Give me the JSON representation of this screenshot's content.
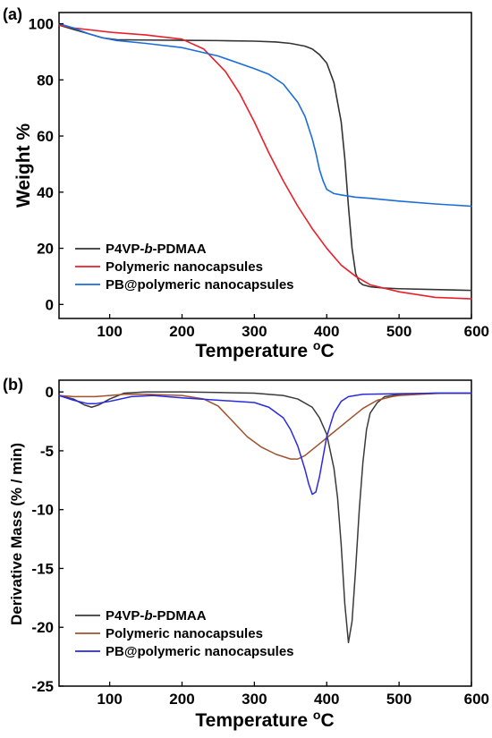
{
  "chart_data": [
    {
      "type": "line",
      "panel_label": "(a)",
      "xlabel": "Temperature",
      "xlabel_unit": "oC",
      "ylabel": "Weight %",
      "xlim": [
        30,
        600
      ],
      "ylim": [
        -5,
        104
      ],
      "xticks": [
        100,
        200,
        300,
        400,
        500,
        600
      ],
      "yticks": [
        0,
        20,
        40,
        60,
        80,
        100
      ],
      "legend_position": "bottom-left",
      "series": [
        {
          "name": "P4VP-b-PDMAA",
          "color": "#333333",
          "x": [
            30,
            50,
            70,
            90,
            110,
            150,
            200,
            250,
            300,
            330,
            350,
            370,
            380,
            390,
            400,
            410,
            420,
            425,
            430,
            435,
            440,
            445,
            450,
            460,
            480,
            500,
            550,
            600
          ],
          "y": [
            99.5,
            98,
            96.5,
            95,
            94.3,
            94.2,
            94.1,
            94,
            93.8,
            93.5,
            93,
            92,
            91,
            89,
            86,
            79,
            65,
            52,
            35,
            20,
            11,
            8,
            7,
            6.3,
            5.8,
            5.6,
            5.3,
            5
          ]
        },
        {
          "name": "Polymeric nanocapsules",
          "color": "#e8202a",
          "x": [
            30,
            50,
            100,
            150,
            200,
            230,
            260,
            280,
            300,
            320,
            340,
            360,
            380,
            400,
            420,
            440,
            460,
            500,
            550,
            600
          ],
          "y": [
            99.5,
            98.5,
            97,
            96,
            94.5,
            91,
            83,
            75,
            65,
            54,
            44,
            35,
            27,
            20,
            14,
            10,
            7,
            4.5,
            2.5,
            2
          ]
        },
        {
          "name": "PB@polymeric nanocapsules",
          "color": "#1a6ed8",
          "x": [
            30,
            50,
            70,
            90,
            110,
            150,
            200,
            250,
            300,
            320,
            340,
            360,
            370,
            380,
            385,
            390,
            395,
            400,
            410,
            420,
            440,
            460,
            500,
            550,
            600
          ],
          "y": [
            100,
            98.5,
            96.5,
            95,
            94,
            93,
            91.5,
            88.5,
            84,
            82,
            78.5,
            72,
            67,
            59,
            54,
            48,
            44,
            41,
            39.5,
            39,
            38.2,
            37.8,
            36.8,
            35.8,
            35
          ]
        }
      ]
    },
    {
      "type": "line",
      "panel_label": "(b)",
      "xlabel": "Temperature",
      "xlabel_unit": "oC",
      "ylabel": "Derivative Mass (% / min)",
      "xlim": [
        30,
        600
      ],
      "ylim": [
        -25,
        1
      ],
      "xticks": [
        100,
        200,
        300,
        400,
        500,
        600
      ],
      "yticks": [
        0,
        -5,
        -10,
        -15,
        -20,
        -25
      ],
      "legend_position": "bottom-left",
      "series": [
        {
          "name": "P4VP-b-PDMAA",
          "color": "#3a3a3a",
          "x": [
            30,
            50,
            65,
            75,
            85,
            100,
            120,
            150,
            200,
            250,
            300,
            340,
            360,
            380,
            390,
            400,
            410,
            415,
            420,
            425,
            430,
            435,
            440,
            445,
            450,
            455,
            460,
            470,
            480,
            500,
            550,
            600
          ],
          "y": [
            -0.3,
            -0.6,
            -1.1,
            -1.3,
            -1.1,
            -0.6,
            -0.1,
            0,
            0,
            -0.05,
            -0.1,
            -0.3,
            -0.6,
            -1.3,
            -2.2,
            -3.6,
            -6.5,
            -9,
            -13,
            -18,
            -21.3,
            -19.5,
            -15,
            -10,
            -6,
            -3.2,
            -1.8,
            -0.9,
            -0.4,
            -0.2,
            -0.1,
            -0.1
          ]
        },
        {
          "name": "Polymeric nanocapsules",
          "color": "#a0522d",
          "x": [
            30,
            50,
            80,
            100,
            120,
            150,
            200,
            230,
            250,
            270,
            290,
            310,
            330,
            350,
            360,
            370,
            390,
            410,
            430,
            450,
            470,
            490,
            500,
            530,
            560,
            600
          ],
          "y": [
            -0.3,
            -0.4,
            -0.4,
            -0.3,
            -0.2,
            -0.2,
            -0.3,
            -0.6,
            -1.2,
            -2.5,
            -3.8,
            -4.7,
            -5.3,
            -5.7,
            -5.7,
            -5.4,
            -4.4,
            -3.4,
            -2.4,
            -1.4,
            -0.7,
            -0.4,
            -0.3,
            -0.2,
            -0.1,
            -0.1
          ]
        },
        {
          "name": "PB@polymeric nanocapsules",
          "color": "#2a2ae0",
          "x": [
            30,
            50,
            70,
            80,
            100,
            130,
            160,
            200,
            250,
            300,
            320,
            340,
            350,
            360,
            370,
            375,
            380,
            385,
            390,
            395,
            400,
            410,
            420,
            430,
            450,
            500,
            550,
            600
          ],
          "y": [
            -0.3,
            -0.7,
            -1.0,
            -1.0,
            -0.8,
            -0.4,
            -0.3,
            -0.5,
            -0.7,
            -0.9,
            -1.3,
            -2.2,
            -3.2,
            -4.6,
            -6.6,
            -7.8,
            -8.7,
            -8.5,
            -7.2,
            -5.5,
            -3.8,
            -1.8,
            -0.8,
            -0.4,
            -0.2,
            -0.15,
            -0.1,
            -0.1
          ]
        }
      ]
    }
  ]
}
